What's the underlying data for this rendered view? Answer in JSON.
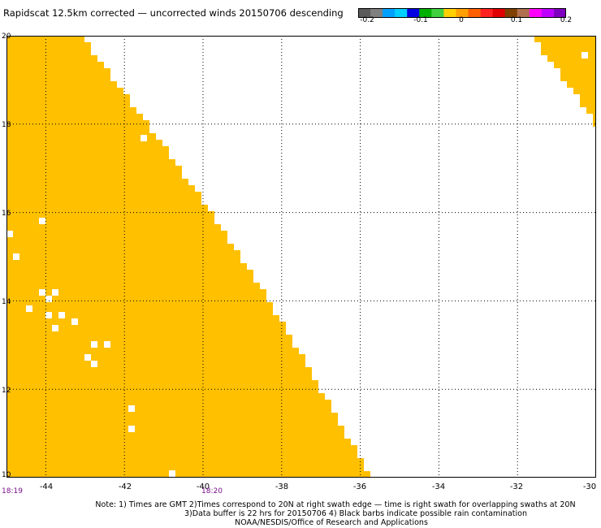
{
  "title": "Rapidscat 12.5km corrected — uncorrected winds 20150706 descending",
  "colorbar": {
    "segments": [
      "#5a5a5a",
      "#808080",
      "#00a0ff",
      "#00d0ff",
      "#0000e0",
      "#00b000",
      "#40d040",
      "#ffd000",
      "#ffa000",
      "#ff6000",
      "#ff2020",
      "#e00000",
      "#804000",
      "#b07050",
      "#ff00ff",
      "#c000ff",
      "#8000c0"
    ],
    "tick_labels": [
      "-0.2",
      "-0.1",
      "0",
      "0.1",
      "0.2"
    ]
  },
  "map": {
    "lon_range": [
      -45,
      -30
    ],
    "lat_range": [
      10,
      20
    ],
    "lon_ticks": [
      "-44",
      "-42",
      "-40",
      "-38",
      "-36",
      "-34",
      "-32",
      "-30"
    ],
    "lat_ticks": [
      "20",
      "18",
      "16",
      "14",
      "12",
      "10"
    ],
    "fill_color": "#ffc000",
    "grid_style": "dotted"
  },
  "time_labels": [
    "18:19",
    "18:20"
  ],
  "notes": [
    "Note: 1) Times are GMT 2)Times correspond to 20N at right swath edge — time is right swath for overlapping swaths at 20N",
    "3)Data buffer is 22 hrs for 20150706 4) Black barbs indicate possible rain contamination",
    "NOAA/NESDIS/Office of Research and Applications"
  ]
}
